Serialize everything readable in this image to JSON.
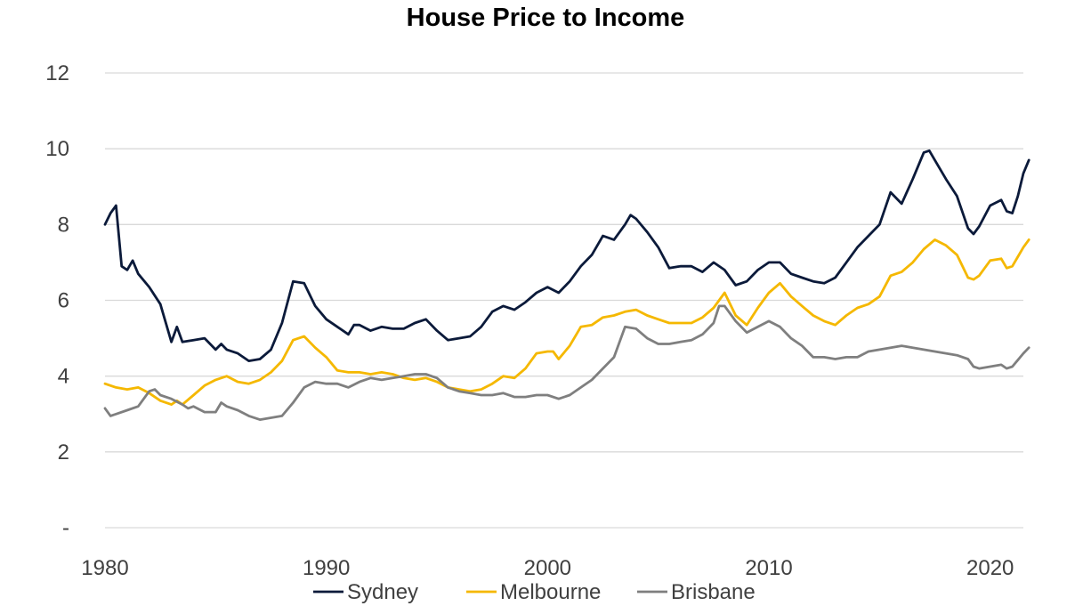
{
  "chart_data": {
    "type": "line",
    "title": "House Price to Income",
    "xlabel": "",
    "ylabel": "",
    "xlim": [
      1980,
      2021.5
    ],
    "ylim": [
      0,
      12
    ],
    "y_ticks": [
      {
        "value": 0,
        "label": "-"
      },
      {
        "value": 2,
        "label": "2"
      },
      {
        "value": 4,
        "label": "4"
      },
      {
        "value": 6,
        "label": "6"
      },
      {
        "value": 8,
        "label": "8"
      },
      {
        "value": 10,
        "label": "10"
      },
      {
        "value": 12,
        "label": "12"
      }
    ],
    "x_ticks": [
      {
        "value": 1980,
        "label": "1980"
      },
      {
        "value": 1990,
        "label": "1990"
      },
      {
        "value": 2000,
        "label": "2000"
      },
      {
        "value": 2010,
        "label": "2010"
      },
      {
        "value": 2020,
        "label": "2020"
      }
    ],
    "grid": "horizontal",
    "legend_position": "bottom",
    "series": [
      {
        "name": "Sydney",
        "color": "#0b1a3a",
        "points": [
          [
            1980,
            8.0
          ],
          [
            1980.25,
            8.3
          ],
          [
            1980.5,
            8.5
          ],
          [
            1980.75,
            6.9
          ],
          [
            1981,
            6.8
          ],
          [
            1981.25,
            7.05
          ],
          [
            1981.5,
            6.7
          ],
          [
            1982,
            6.35
          ],
          [
            1982.5,
            5.9
          ],
          [
            1983,
            4.9
          ],
          [
            1983.25,
            5.3
          ],
          [
            1983.5,
            4.9
          ],
          [
            1984,
            4.95
          ],
          [
            1984.5,
            5.0
          ],
          [
            1985,
            4.7
          ],
          [
            1985.25,
            4.85
          ],
          [
            1985.5,
            4.7
          ],
          [
            1986,
            4.6
          ],
          [
            1986.5,
            4.4
          ],
          [
            1987,
            4.45
          ],
          [
            1987.5,
            4.7
          ],
          [
            1988,
            5.4
          ],
          [
            1988.5,
            6.5
          ],
          [
            1989,
            6.45
          ],
          [
            1989.5,
            5.85
          ],
          [
            1990,
            5.5
          ],
          [
            1990.5,
            5.3
          ],
          [
            1991,
            5.1
          ],
          [
            1991.25,
            5.35
          ],
          [
            1991.5,
            5.35
          ],
          [
            1992,
            5.2
          ],
          [
            1992.5,
            5.3
          ],
          [
            1993,
            5.25
          ],
          [
            1993.5,
            5.25
          ],
          [
            1994,
            5.4
          ],
          [
            1994.5,
            5.5
          ],
          [
            1995,
            5.2
          ],
          [
            1995.5,
            4.95
          ],
          [
            1996,
            5.0
          ],
          [
            1996.5,
            5.05
          ],
          [
            1997,
            5.3
          ],
          [
            1997.5,
            5.7
          ],
          [
            1998,
            5.85
          ],
          [
            1998.5,
            5.75
          ],
          [
            1999,
            5.95
          ],
          [
            1999.5,
            6.2
          ],
          [
            2000,
            6.35
          ],
          [
            2000.5,
            6.2
          ],
          [
            2001,
            6.5
          ],
          [
            2001.5,
            6.9
          ],
          [
            2002,
            7.2
          ],
          [
            2002.5,
            7.7
          ],
          [
            2003,
            7.6
          ],
          [
            2003.5,
            8.0
          ],
          [
            2003.75,
            8.25
          ],
          [
            2004,
            8.15
          ],
          [
            2004.5,
            7.8
          ],
          [
            2005,
            7.4
          ],
          [
            2005.5,
            6.85
          ],
          [
            2006,
            6.9
          ],
          [
            2006.5,
            6.9
          ],
          [
            2007,
            6.75
          ],
          [
            2007.5,
            7.0
          ],
          [
            2008,
            6.8
          ],
          [
            2008.5,
            6.4
          ],
          [
            2009,
            6.5
          ],
          [
            2009.5,
            6.8
          ],
          [
            2010,
            7.0
          ],
          [
            2010.5,
            7.0
          ],
          [
            2011,
            6.7
          ],
          [
            2011.5,
            6.6
          ],
          [
            2012,
            6.5
          ],
          [
            2012.5,
            6.45
          ],
          [
            2013,
            6.6
          ],
          [
            2013.5,
            7.0
          ],
          [
            2014,
            7.4
          ],
          [
            2014.5,
            7.7
          ],
          [
            2015,
            8.0
          ],
          [
            2015.5,
            8.85
          ],
          [
            2016,
            8.55
          ],
          [
            2016.5,
            9.2
          ],
          [
            2017,
            9.9
          ],
          [
            2017.25,
            9.95
          ],
          [
            2017.5,
            9.7
          ],
          [
            2018,
            9.2
          ],
          [
            2018.5,
            8.75
          ],
          [
            2019,
            7.9
          ],
          [
            2019.25,
            7.75
          ],
          [
            2019.5,
            7.95
          ],
          [
            2020,
            8.5
          ],
          [
            2020.5,
            8.65
          ],
          [
            2020.75,
            8.35
          ],
          [
            2021,
            8.3
          ],
          [
            2021.25,
            8.75
          ],
          [
            2021.5,
            9.35
          ],
          [
            2021.75,
            9.7
          ]
        ]
      },
      {
        "name": "Melbourne",
        "color": "#f5b800",
        "points": [
          [
            1980,
            3.8
          ],
          [
            1980.5,
            3.7
          ],
          [
            1981,
            3.65
          ],
          [
            1981.5,
            3.7
          ],
          [
            1982,
            3.55
          ],
          [
            1982.5,
            3.35
          ],
          [
            1983,
            3.25
          ],
          [
            1983.25,
            3.35
          ],
          [
            1983.5,
            3.25
          ],
          [
            1984,
            3.5
          ],
          [
            1984.5,
            3.75
          ],
          [
            1985,
            3.9
          ],
          [
            1985.5,
            4.0
          ],
          [
            1986,
            3.85
          ],
          [
            1986.5,
            3.8
          ],
          [
            1987,
            3.9
          ],
          [
            1987.5,
            4.1
          ],
          [
            1988,
            4.4
          ],
          [
            1988.5,
            4.95
          ],
          [
            1989,
            5.05
          ],
          [
            1989.5,
            4.75
          ],
          [
            1990,
            4.5
          ],
          [
            1990.5,
            4.15
          ],
          [
            1991,
            4.1
          ],
          [
            1991.5,
            4.1
          ],
          [
            1992,
            4.05
          ],
          [
            1992.5,
            4.1
          ],
          [
            1993,
            4.05
          ],
          [
            1993.5,
            3.95
          ],
          [
            1994,
            3.9
          ],
          [
            1994.5,
            3.95
          ],
          [
            1995,
            3.85
          ],
          [
            1995.5,
            3.7
          ],
          [
            1996,
            3.65
          ],
          [
            1996.5,
            3.6
          ],
          [
            1997,
            3.65
          ],
          [
            1997.5,
            3.8
          ],
          [
            1998,
            4.0
          ],
          [
            1998.5,
            3.95
          ],
          [
            1999,
            4.2
          ],
          [
            1999.5,
            4.6
          ],
          [
            2000,
            4.65
          ],
          [
            2000.25,
            4.65
          ],
          [
            2000.5,
            4.45
          ],
          [
            2001,
            4.8
          ],
          [
            2001.5,
            5.3
          ],
          [
            2002,
            5.35
          ],
          [
            2002.5,
            5.55
          ],
          [
            2003,
            5.6
          ],
          [
            2003.5,
            5.7
          ],
          [
            2004,
            5.75
          ],
          [
            2004.5,
            5.6
          ],
          [
            2005,
            5.5
          ],
          [
            2005.5,
            5.4
          ],
          [
            2006,
            5.4
          ],
          [
            2006.5,
            5.4
          ],
          [
            2007,
            5.55
          ],
          [
            2007.5,
            5.8
          ],
          [
            2008,
            6.2
          ],
          [
            2008.5,
            5.6
          ],
          [
            2009,
            5.35
          ],
          [
            2009.5,
            5.8
          ],
          [
            2010,
            6.2
          ],
          [
            2010.5,
            6.45
          ],
          [
            2011,
            6.1
          ],
          [
            2011.5,
            5.85
          ],
          [
            2012,
            5.6
          ],
          [
            2012.5,
            5.45
          ],
          [
            2013,
            5.35
          ],
          [
            2013.5,
            5.6
          ],
          [
            2014,
            5.8
          ],
          [
            2014.5,
            5.9
          ],
          [
            2015,
            6.1
          ],
          [
            2015.5,
            6.65
          ],
          [
            2016,
            6.75
          ],
          [
            2016.5,
            7.0
          ],
          [
            2017,
            7.35
          ],
          [
            2017.5,
            7.6
          ],
          [
            2018,
            7.45
          ],
          [
            2018.5,
            7.2
          ],
          [
            2019,
            6.6
          ],
          [
            2019.25,
            6.55
          ],
          [
            2019.5,
            6.65
          ],
          [
            2020,
            7.05
          ],
          [
            2020.5,
            7.1
          ],
          [
            2020.75,
            6.85
          ],
          [
            2021,
            6.9
          ],
          [
            2021.5,
            7.4
          ],
          [
            2021.75,
            7.6
          ]
        ]
      },
      {
        "name": "Brisbane",
        "color": "#7f7f7f",
        "points": [
          [
            1980,
            3.15
          ],
          [
            1980.25,
            2.95
          ],
          [
            1980.5,
            3.0
          ],
          [
            1981,
            3.1
          ],
          [
            1981.5,
            3.2
          ],
          [
            1982,
            3.6
          ],
          [
            1982.25,
            3.65
          ],
          [
            1982.5,
            3.5
          ],
          [
            1983,
            3.4
          ],
          [
            1983.5,
            3.25
          ],
          [
            1983.75,
            3.15
          ],
          [
            1984,
            3.2
          ],
          [
            1984.5,
            3.05
          ],
          [
            1985,
            3.05
          ],
          [
            1985.25,
            3.3
          ],
          [
            1985.5,
            3.2
          ],
          [
            1986,
            3.1
          ],
          [
            1986.5,
            2.95
          ],
          [
            1987,
            2.85
          ],
          [
            1987.5,
            2.9
          ],
          [
            1988,
            2.95
          ],
          [
            1988.5,
            3.3
          ],
          [
            1989,
            3.7
          ],
          [
            1989.5,
            3.85
          ],
          [
            1990,
            3.8
          ],
          [
            1990.5,
            3.8
          ],
          [
            1991,
            3.7
          ],
          [
            1991.5,
            3.85
          ],
          [
            1992,
            3.95
          ],
          [
            1992.5,
            3.9
          ],
          [
            1993,
            3.95
          ],
          [
            1993.5,
            4.0
          ],
          [
            1994,
            4.05
          ],
          [
            1994.5,
            4.05
          ],
          [
            1995,
            3.95
          ],
          [
            1995.5,
            3.7
          ],
          [
            1996,
            3.6
          ],
          [
            1996.5,
            3.55
          ],
          [
            1997,
            3.5
          ],
          [
            1997.5,
            3.5
          ],
          [
            1998,
            3.55
          ],
          [
            1998.5,
            3.45
          ],
          [
            1999,
            3.45
          ],
          [
            1999.5,
            3.5
          ],
          [
            2000,
            3.5
          ],
          [
            2000.5,
            3.4
          ],
          [
            2001,
            3.5
          ],
          [
            2001.5,
            3.7
          ],
          [
            2002,
            3.9
          ],
          [
            2002.5,
            4.2
          ],
          [
            2003,
            4.5
          ],
          [
            2003.5,
            5.3
          ],
          [
            2004,
            5.25
          ],
          [
            2004.5,
            5.0
          ],
          [
            2005,
            4.85
          ],
          [
            2005.5,
            4.85
          ],
          [
            2006,
            4.9
          ],
          [
            2006.5,
            4.95
          ],
          [
            2007,
            5.1
          ],
          [
            2007.5,
            5.4
          ],
          [
            2007.75,
            5.85
          ],
          [
            2008,
            5.85
          ],
          [
            2008.5,
            5.45
          ],
          [
            2009,
            5.15
          ],
          [
            2009.5,
            5.3
          ],
          [
            2010,
            5.45
          ],
          [
            2010.5,
            5.3
          ],
          [
            2011,
            5.0
          ],
          [
            2011.5,
            4.8
          ],
          [
            2012,
            4.5
          ],
          [
            2012.5,
            4.5
          ],
          [
            2013,
            4.45
          ],
          [
            2013.5,
            4.5
          ],
          [
            2014,
            4.5
          ],
          [
            2014.5,
            4.65
          ],
          [
            2015,
            4.7
          ],
          [
            2015.5,
            4.75
          ],
          [
            2016,
            4.8
          ],
          [
            2016.5,
            4.75
          ],
          [
            2017,
            4.7
          ],
          [
            2017.5,
            4.65
          ],
          [
            2018,
            4.6
          ],
          [
            2018.5,
            4.55
          ],
          [
            2019,
            4.45
          ],
          [
            2019.25,
            4.25
          ],
          [
            2019.5,
            4.2
          ],
          [
            2020,
            4.25
          ],
          [
            2020.5,
            4.3
          ],
          [
            2020.75,
            4.2
          ],
          [
            2021,
            4.25
          ],
          [
            2021.5,
            4.6
          ],
          [
            2021.75,
            4.75
          ]
        ]
      }
    ]
  }
}
